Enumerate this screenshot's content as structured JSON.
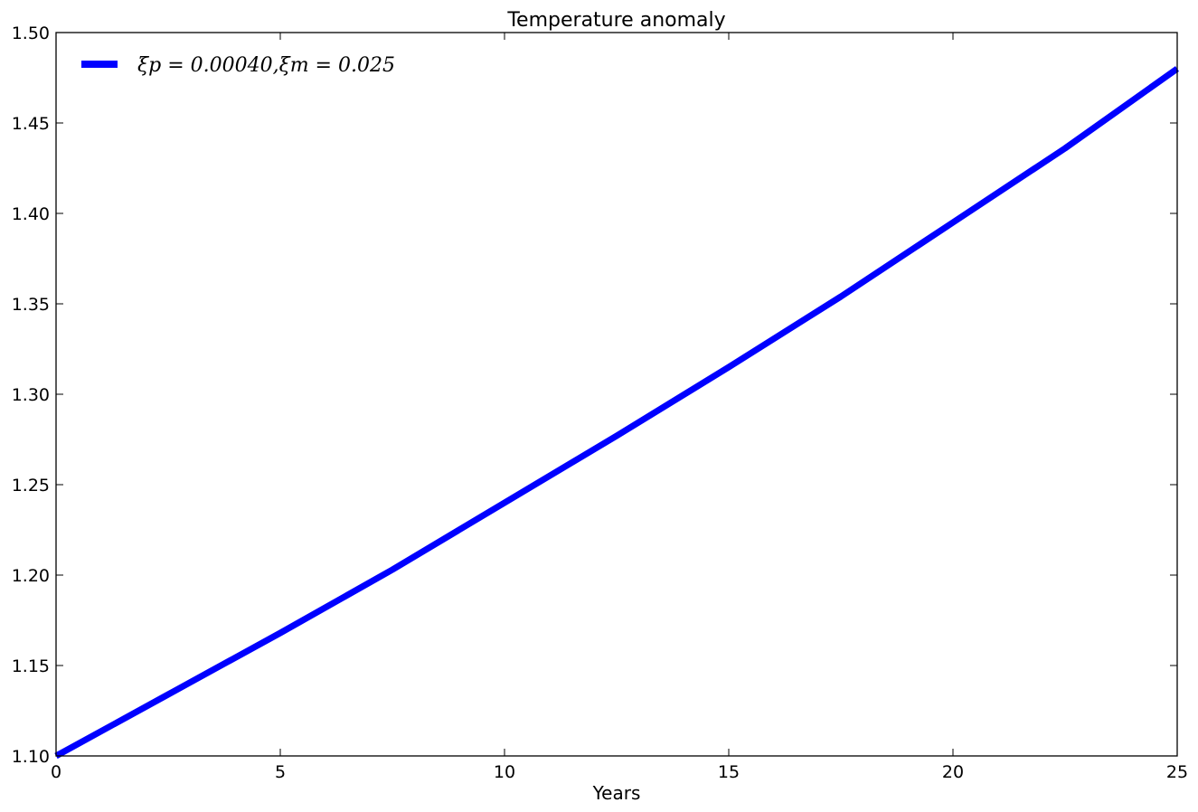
{
  "chart_data": {
    "type": "line",
    "title": "Temperature anomaly",
    "xlabel": "Years",
    "ylabel": "",
    "xlim": [
      0,
      25
    ],
    "ylim": [
      1.1,
      1.5
    ],
    "xticks": [
      "0",
      "5",
      "10",
      "15",
      "20",
      "25"
    ],
    "yticks": [
      "1.10",
      "1.15",
      "1.20",
      "1.25",
      "1.30",
      "1.35",
      "1.40",
      "1.45",
      "1.50"
    ],
    "grid": false,
    "legend_position": "top-left",
    "series": [
      {
        "name": "ξp = 0.00040,ξm = 0.025",
        "color": "#0000ff",
        "x": [
          0,
          2.5,
          5,
          7.5,
          10,
          12.5,
          15,
          17.5,
          20,
          22.5,
          25
        ],
        "y": [
          1.1,
          1.134,
          1.168,
          1.203,
          1.24,
          1.277,
          1.315,
          1.354,
          1.395,
          1.436,
          1.48
        ]
      }
    ]
  }
}
